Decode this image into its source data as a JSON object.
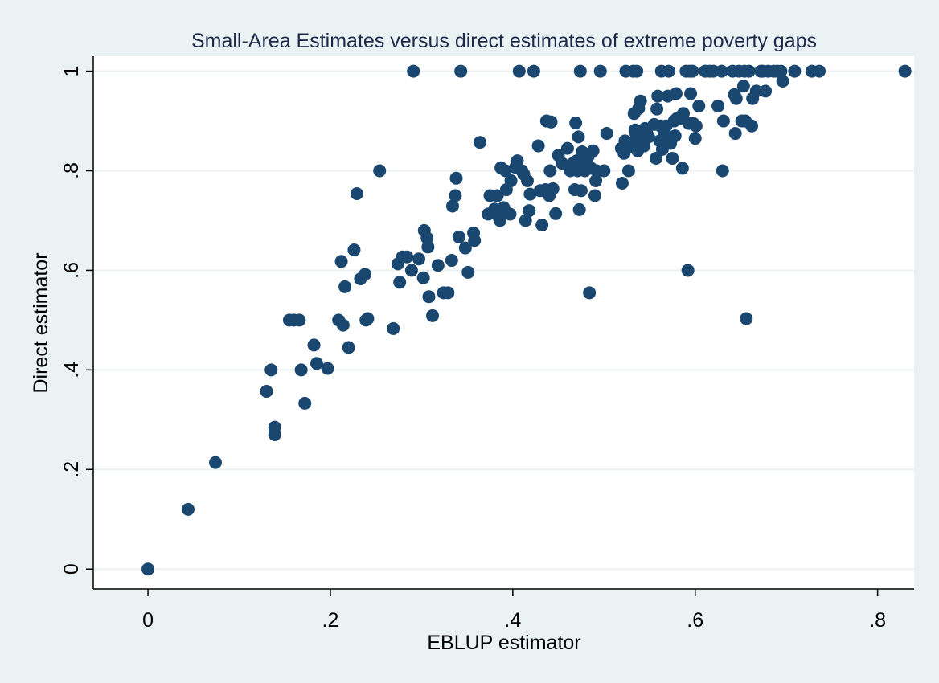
{
  "chart_data": {
    "type": "scatter",
    "title": "Small-Area Estimates versus direct estimates of extreme poverty gaps",
    "xlabel": "EBLUP estimator",
    "ylabel": "Direct estimator",
    "xlim": [
      -0.06,
      0.84
    ],
    "ylim": [
      -0.04,
      1.03
    ],
    "xticks": [
      0,
      0.2,
      0.4,
      0.6,
      0.8
    ],
    "xtick_labels": [
      "0",
      ".2",
      ".4",
      ".6",
      ".8"
    ],
    "yticks": [
      0,
      0.2,
      0.4,
      0.6,
      0.8,
      1
    ],
    "ytick_labels": [
      "0",
      ".2",
      ".4",
      ".6",
      ".8",
      "1"
    ],
    "grid": true,
    "legend": "none",
    "colors": {
      "background": "#eaf2f3",
      "plot_area": "#ffffff",
      "marker": "#1a476f",
      "gridline": "#eaf2f3",
      "title": "#1e2a4a"
    },
    "points": [
      [
        0.0,
        0.0
      ],
      [
        0.044,
        0.12
      ],
      [
        0.074,
        0.214
      ],
      [
        0.13,
        0.357
      ],
      [
        0.135,
        0.4
      ],
      [
        0.139,
        0.285
      ],
      [
        0.139,
        0.27
      ],
      [
        0.155,
        0.5
      ],
      [
        0.16,
        0.5
      ],
      [
        0.166,
        0.5
      ],
      [
        0.168,
        0.4
      ],
      [
        0.172,
        0.333
      ],
      [
        0.182,
        0.45
      ],
      [
        0.185,
        0.413
      ],
      [
        0.197,
        0.403
      ],
      [
        0.209,
        0.5
      ],
      [
        0.212,
        0.618
      ],
      [
        0.214,
        0.49
      ],
      [
        0.216,
        0.567
      ],
      [
        0.22,
        0.445
      ],
      [
        0.226,
        0.641
      ],
      [
        0.229,
        0.754
      ],
      [
        0.233,
        0.583
      ],
      [
        0.238,
        0.592
      ],
      [
        0.239,
        0.5
      ],
      [
        0.241,
        0.503
      ],
      [
        0.254,
        0.8
      ],
      [
        0.269,
        0.483
      ],
      [
        0.274,
        0.613
      ],
      [
        0.276,
        0.576
      ],
      [
        0.279,
        0.627
      ],
      [
        0.284,
        0.627
      ],
      [
        0.289,
        0.6
      ],
      [
        0.291,
        1.0
      ],
      [
        0.297,
        0.623
      ],
      [
        0.302,
        0.585
      ],
      [
        0.303,
        0.68
      ],
      [
        0.306,
        0.665
      ],
      [
        0.307,
        0.647
      ],
      [
        0.308,
        0.547
      ],
      [
        0.312,
        0.509
      ],
      [
        0.318,
        0.61
      ],
      [
        0.324,
        0.555
      ],
      [
        0.329,
        0.555
      ],
      [
        0.333,
        0.62
      ],
      [
        0.334,
        0.729
      ],
      [
        0.337,
        0.75
      ],
      [
        0.338,
        0.785
      ],
      [
        0.341,
        0.667
      ],
      [
        0.343,
        1.0
      ],
      [
        0.348,
        0.645
      ],
      [
        0.351,
        0.596
      ],
      [
        0.357,
        0.675
      ],
      [
        0.358,
        0.66
      ],
      [
        0.364,
        0.857
      ],
      [
        0.373,
        0.713
      ],
      [
        0.375,
        0.75
      ],
      [
        0.38,
        0.723
      ],
      [
        0.383,
        0.75
      ],
      [
        0.385,
        0.706
      ],
      [
        0.386,
        0.7
      ],
      [
        0.387,
        0.806
      ],
      [
        0.39,
        0.726
      ],
      [
        0.392,
        0.8
      ],
      [
        0.393,
        0.762
      ],
      [
        0.397,
        0.713
      ],
      [
        0.398,
        0.78
      ],
      [
        0.403,
        0.807
      ],
      [
        0.405,
        0.82
      ],
      [
        0.407,
        1.0
      ],
      [
        0.41,
        0.8
      ],
      [
        0.412,
        0.793
      ],
      [
        0.414,
        0.7
      ],
      [
        0.416,
        0.78
      ],
      [
        0.418,
        0.72
      ],
      [
        0.419,
        0.753
      ],
      [
        0.423,
        1.0
      ],
      [
        0.428,
        0.85
      ],
      [
        0.43,
        0.76
      ],
      [
        0.432,
        0.691
      ],
      [
        0.436,
        0.762
      ],
      [
        0.437,
        0.9
      ],
      [
        0.44,
        0.75
      ],
      [
        0.441,
        0.8
      ],
      [
        0.442,
        0.898
      ],
      [
        0.444,
        0.764
      ],
      [
        0.447,
        0.714
      ],
      [
        0.45,
        0.831
      ],
      [
        0.454,
        0.815
      ],
      [
        0.46,
        0.845
      ],
      [
        0.463,
        0.8
      ],
      [
        0.466,
        0.815
      ],
      [
        0.468,
        0.762
      ],
      [
        0.469,
        0.896
      ],
      [
        0.47,
        0.82
      ],
      [
        0.471,
        0.8
      ],
      [
        0.472,
        0.868
      ],
      [
        0.473,
        0.722
      ],
      [
        0.474,
        1.0
      ],
      [
        0.475,
        0.76
      ],
      [
        0.476,
        0.838
      ],
      [
        0.477,
        0.812
      ],
      [
        0.479,
        0.8
      ],
      [
        0.481,
        0.822
      ],
      [
        0.483,
        0.83
      ],
      [
        0.484,
        0.555
      ],
      [
        0.486,
        0.805
      ],
      [
        0.488,
        0.84
      ],
      [
        0.49,
        0.75
      ],
      [
        0.491,
        0.78
      ],
      [
        0.492,
        0.8
      ],
      [
        0.496,
        1.0
      ],
      [
        0.5,
        0.8
      ],
      [
        0.503,
        0.875
      ],
      [
        0.519,
        0.845
      ],
      [
        0.52,
        0.775
      ],
      [
        0.522,
        0.835
      ],
      [
        0.523,
        0.86
      ],
      [
        0.524,
        1.0
      ],
      [
        0.525,
        0.85
      ],
      [
        0.527,
        0.8
      ],
      [
        0.529,
        0.848
      ],
      [
        0.531,
        0.857
      ],
      [
        0.532,
        1.0
      ],
      [
        0.533,
        0.915
      ],
      [
        0.534,
        0.882
      ],
      [
        0.535,
        0.875
      ],
      [
        0.536,
        1.0
      ],
      [
        0.537,
        0.84
      ],
      [
        0.538,
        0.925
      ],
      [
        0.539,
        0.88
      ],
      [
        0.54,
        0.94
      ],
      [
        0.541,
        0.862
      ],
      [
        0.542,
        0.875
      ],
      [
        0.544,
        0.85
      ],
      [
        0.545,
        0.885
      ],
      [
        0.547,
        0.875
      ],
      [
        0.549,
        0.868
      ],
      [
        0.555,
        0.893
      ],
      [
        0.557,
        0.825
      ],
      [
        0.558,
        0.924
      ],
      [
        0.559,
        0.95
      ],
      [
        0.561,
        0.86
      ],
      [
        0.562,
        0.89
      ],
      [
        0.563,
        1.0
      ],
      [
        0.564,
        0.843
      ],
      [
        0.566,
        0.872
      ],
      [
        0.567,
        0.875
      ],
      [
        0.568,
        0.89
      ],
      [
        0.57,
        0.95
      ],
      [
        0.571,
        1.0
      ],
      [
        0.573,
        0.855
      ],
      [
        0.575,
        0.825
      ],
      [
        0.577,
        0.9
      ],
      [
        0.578,
        0.87
      ],
      [
        0.579,
        0.955
      ],
      [
        0.58,
        0.905
      ],
      [
        0.583,
        0.905
      ],
      [
        0.585,
        0.91
      ],
      [
        0.586,
        0.805
      ],
      [
        0.587,
        0.915
      ],
      [
        0.59,
        1.0
      ],
      [
        0.592,
        0.6
      ],
      [
        0.593,
        0.895
      ],
      [
        0.594,
        1.0
      ],
      [
        0.595,
        0.955
      ],
      [
        0.597,
        1.0
      ],
      [
        0.598,
        0.895
      ],
      [
        0.6,
        0.865
      ],
      [
        0.601,
        0.89
      ],
      [
        0.604,
        0.93
      ],
      [
        0.611,
        1.0
      ],
      [
        0.616,
        1.0
      ],
      [
        0.62,
        1.0
      ],
      [
        0.625,
        0.93
      ],
      [
        0.629,
        1.0
      ],
      [
        0.63,
        0.8
      ],
      [
        0.631,
        0.9
      ],
      [
        0.641,
        1.0
      ],
      [
        0.643,
        0.953
      ],
      [
        0.644,
        0.875
      ],
      [
        0.645,
        0.945
      ],
      [
        0.648,
        1.0
      ],
      [
        0.651,
        0.9
      ],
      [
        0.653,
        0.97
      ],
      [
        0.654,
        1.0
      ],
      [
        0.655,
        0.9
      ],
      [
        0.656,
        0.503
      ],
      [
        0.659,
        1.0
      ],
      [
        0.662,
        0.89
      ],
      [
        0.663,
        0.945
      ],
      [
        0.667,
        0.96
      ],
      [
        0.672,
        1.0
      ],
      [
        0.674,
        1.0
      ],
      [
        0.677,
        0.96
      ],
      [
        0.68,
        1.0
      ],
      [
        0.686,
        1.0
      ],
      [
        0.69,
        1.0
      ],
      [
        0.694,
        1.0
      ],
      [
        0.696,
        0.98
      ],
      [
        0.709,
        1.0
      ],
      [
        0.728,
        1.0
      ],
      [
        0.736,
        1.0
      ],
      [
        0.83,
        1.0
      ]
    ]
  }
}
